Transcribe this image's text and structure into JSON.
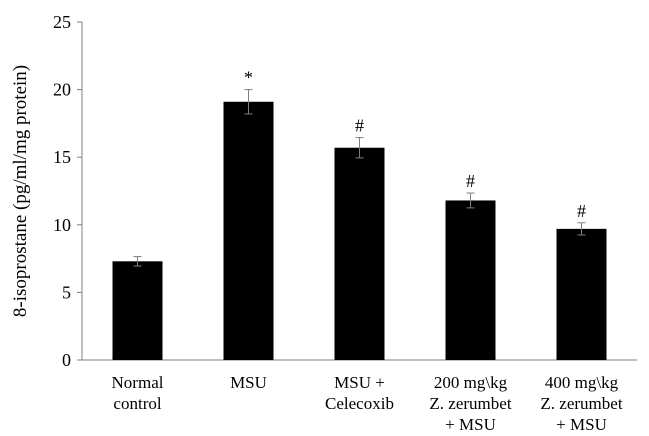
{
  "chart_data": {
    "type": "bar",
    "ylabel": "8-isoprostane (pg/ml/mg protein)",
    "xlabel": "",
    "ylim": [
      0,
      25
    ],
    "yticks": [
      0,
      5,
      10,
      15,
      20,
      25
    ],
    "ytick_labels": [
      "0",
      "5",
      "10",
      "15",
      "20",
      "25"
    ],
    "categories": [
      [
        "Normal",
        "control"
      ],
      [
        "MSU"
      ],
      [
        "MSU +",
        "Celecoxib"
      ],
      [
        "200 mg\\kg",
        "Z. zerumbet",
        "+ MSU"
      ],
      [
        "400 mg\\kg",
        "Z. zerumbet",
        "+ MSU"
      ]
    ],
    "values": [
      7.3,
      19.1,
      15.7,
      11.8,
      9.7
    ],
    "errors": [
      0.35,
      0.9,
      0.75,
      0.55,
      0.45
    ],
    "annotations": [
      "",
      "*",
      "#",
      "#",
      "#"
    ],
    "bar_color": "#000000",
    "grid": false
  }
}
